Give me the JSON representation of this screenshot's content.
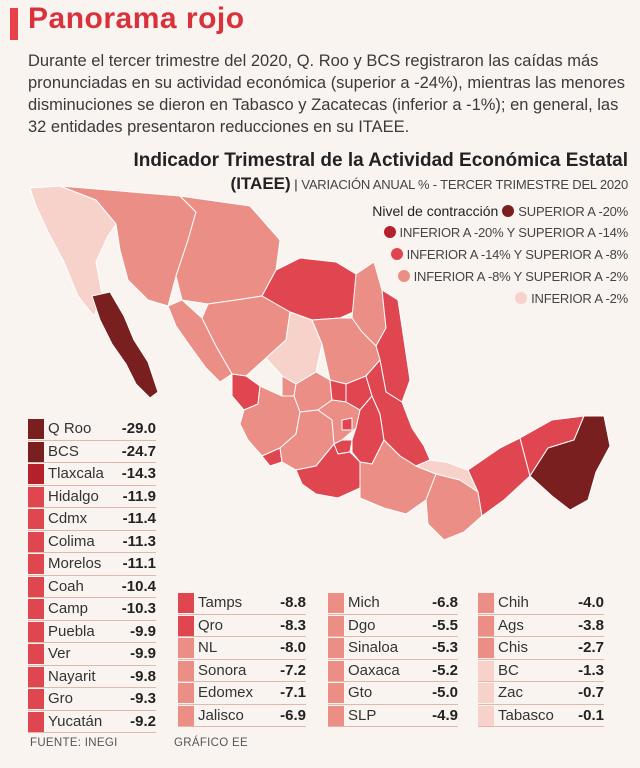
{
  "headline": "Panorama rojo",
  "lede": "Durante el tercer trimestre del 2020, Q. Roo y BCS registraron las caídas más pronunciadas en su actividad económica (superior a -24%), mientras las menores disminuciones se dieron en Tabasco y Zacatecas (inferior a -1%); en general, las 32 entidades presentaron reducciones en su ITAEE.",
  "chart_title": "Indicador Trimestral de la Actividad Económica Estatal",
  "chart_subtitle_bold": "(ITAEE)",
  "chart_subtitle_sep": "|",
  "chart_subtitle": "VARIACIÓN ANUAL % - TERCER TRIMESTRE DEL 2020",
  "legend": {
    "heading": "Nivel de contracción",
    "items": [
      {
        "label": "SUPERIOR A -20%",
        "color": "#7a1f1f"
      },
      {
        "label": "INFERIOR A -20% Y SUPERIOR A -14%",
        "color": "#b3212b"
      },
      {
        "label": "INFERIOR A -14% Y SUPERIOR A -8%",
        "color": "#e04650"
      },
      {
        "label": "INFERIOR A -8% Y SUPERIOR A -2%",
        "color": "#eb8e85"
      },
      {
        "label": "INFERIOR A -2%",
        "color": "#f6d2cb"
      }
    ]
  },
  "colors": {
    "accent": "#e8414a",
    "title": "#d9323d",
    "map_outline": "#ffffff"
  },
  "chart_data": {
    "type": "table",
    "title": "Indicador Trimestral de la Actividad Económica Estatal (ITAEE)",
    "subtitle": "VARIACIÓN ANUAL % - TERCER TRIMESTRE DEL 2020",
    "columns": [
      [
        {
          "state": "Q Roo",
          "value": "-29.0",
          "color": "#7a1f1f"
        },
        {
          "state": "BCS",
          "value": "-24.7",
          "color": "#7a1f1f"
        },
        {
          "state": "Tlaxcala",
          "value": "-14.3",
          "color": "#b3212b"
        },
        {
          "state": "Hidalgo",
          "value": "-11.9",
          "color": "#e04650"
        },
        {
          "state": "Cdmx",
          "value": "-11.4",
          "color": "#e04650"
        },
        {
          "state": "Colima",
          "value": "-11.3",
          "color": "#e04650"
        },
        {
          "state": "Morelos",
          "value": "-11.1",
          "color": "#e04650"
        },
        {
          "state": "Coah",
          "value": "-10.4",
          "color": "#e04650"
        },
        {
          "state": "Camp",
          "value": "-10.3",
          "color": "#e04650"
        },
        {
          "state": "Puebla",
          "value": "-9.9",
          "color": "#e04650"
        },
        {
          "state": "Ver",
          "value": "-9.9",
          "color": "#e04650"
        },
        {
          "state": "Nayarit",
          "value": "-9.8",
          "color": "#e04650"
        },
        {
          "state": "Gro",
          "value": "-9.3",
          "color": "#e04650"
        },
        {
          "state": "Yucatán",
          "value": "-9.2",
          "color": "#e04650"
        }
      ],
      [
        {
          "state": "Tamps",
          "value": "-8.8",
          "color": "#e04650"
        },
        {
          "state": "Qro",
          "value": "-8.3",
          "color": "#e04650"
        },
        {
          "state": "NL",
          "value": "-8.0",
          "color": "#eb8e85"
        },
        {
          "state": "Sonora",
          "value": "-7.2",
          "color": "#eb8e85"
        },
        {
          "state": "Edomex",
          "value": "-7.1",
          "color": "#eb8e85"
        },
        {
          "state": "Jalisco",
          "value": "-6.9",
          "color": "#eb8e85"
        }
      ],
      [
        {
          "state": "Mich",
          "value": "-6.8",
          "color": "#eb8e85"
        },
        {
          "state": "Dgo",
          "value": "-5.5",
          "color": "#eb8e85"
        },
        {
          "state": "Sinaloa",
          "value": "-5.3",
          "color": "#eb8e85"
        },
        {
          "state": "Oaxaca",
          "value": "-5.2",
          "color": "#eb8e85"
        },
        {
          "state": "Gto",
          "value": "-5.0",
          "color": "#eb8e85"
        },
        {
          "state": "SLP",
          "value": "-4.9",
          "color": "#eb8e85"
        }
      ],
      [
        {
          "state": "Chih",
          "value": "-4.0",
          "color": "#eb8e85"
        },
        {
          "state": "Ags",
          "value": "-3.8",
          "color": "#eb8e85"
        },
        {
          "state": "Chis",
          "value": "-2.7",
          "color": "#eb8e85"
        },
        {
          "state": "BC",
          "value": "-1.3",
          "color": "#f6d2cb"
        },
        {
          "state": "Zac",
          "value": "-0.7",
          "color": "#f6d2cb"
        },
        {
          "state": "Tabasco",
          "value": "-0.1",
          "color": "#f6d2cb"
        }
      ]
    ]
  },
  "footer": {
    "source": "FUENTE: INEGI",
    "credit": "GRÁFICO EE"
  }
}
